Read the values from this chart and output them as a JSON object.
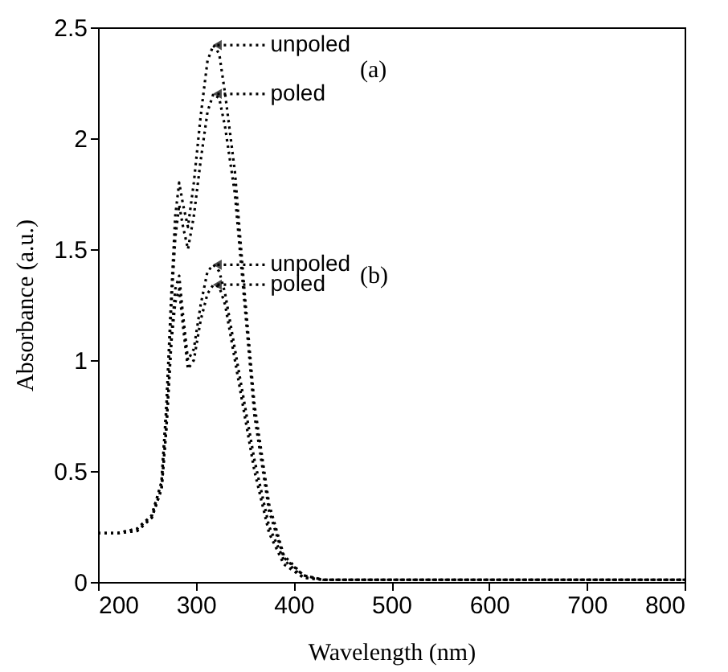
{
  "chart_data": {
    "type": "line",
    "xlabel": "Wavelength (nm)",
    "ylabel": "Absorbance (a.u.)",
    "xlim": [
      200,
      800
    ],
    "xticks": [
      200,
      300,
      400,
      500,
      600,
      700,
      800
    ],
    "ylim": [
      0,
      2.5
    ],
    "yticks": [
      {
        "value": 0,
        "label": "0"
      },
      0.5,
      {
        "value": 1,
        "label": "1"
      },
      1.5,
      {
        "value": 2,
        "label": "2"
      },
      2.5
    ],
    "x": [
      200,
      220,
      240,
      255,
      265,
      270,
      275,
      279,
      283,
      287,
      292,
      298,
      305,
      312,
      318,
      324,
      330,
      340,
      350,
      360,
      375,
      390,
      410,
      430,
      500,
      600,
      700,
      800
    ],
    "series": [
      {
        "name": "unpoled",
        "color": "#000000",
        "values": [
          0.22,
          0.22,
          0.24,
          0.3,
          0.45,
          0.8,
          1.3,
          1.65,
          1.8,
          1.7,
          1.6,
          1.8,
          2.1,
          2.35,
          2.42,
          2.38,
          2.2,
          1.85,
          1.3,
          0.8,
          0.35,
          0.12,
          0.03,
          0.01,
          0.01,
          0.01,
          0.01,
          0.01
        ]
      },
      {
        "name": "poled",
        "color": "#000000",
        "values": [
          0.22,
          0.22,
          0.24,
          0.3,
          0.45,
          0.78,
          1.25,
          1.55,
          1.7,
          1.6,
          1.5,
          1.65,
          1.9,
          2.12,
          2.2,
          2.18,
          2.05,
          1.75,
          1.25,
          0.75,
          0.32,
          0.11,
          0.03,
          0.01,
          0.01,
          0.01,
          0.01,
          0.01
        ]
      },
      {
        "name": "unpoled",
        "color": "#000000",
        "values": [
          0.22,
          0.22,
          0.23,
          0.29,
          0.42,
          0.7,
          1.1,
          1.32,
          1.38,
          1.2,
          1.0,
          1.05,
          1.25,
          1.4,
          1.43,
          1.4,
          1.3,
          1.05,
          0.8,
          0.55,
          0.25,
          0.1,
          0.02,
          0.01,
          0.01,
          0.01,
          0.01,
          0.01
        ]
      },
      {
        "name": "poled",
        "color": "#000000",
        "values": [
          0.22,
          0.22,
          0.23,
          0.29,
          0.42,
          0.7,
          1.08,
          1.26,
          1.32,
          1.15,
          0.96,
          1.0,
          1.18,
          1.3,
          1.34,
          1.33,
          1.25,
          1.0,
          0.75,
          0.5,
          0.22,
          0.08,
          0.02,
          0.01,
          0.01,
          0.01,
          0.01,
          0.01
        ]
      }
    ],
    "line_style": "dotted",
    "grid": false,
    "legend": "top left",
    "annotations": [
      "(a)",
      "(b)"
    ]
  }
}
